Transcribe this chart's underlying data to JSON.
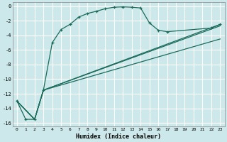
{
  "xlabel": "Humidex (Indice chaleur)",
  "bg_color": "#cce8ea",
  "grid_color": "#ffffff",
  "line_color": "#1a6b5a",
  "xlim": [
    -0.5,
    23.5
  ],
  "ylim": [
    -16.5,
    0.5
  ],
  "xtick_labels": [
    "0",
    "1",
    "2",
    "3",
    "4",
    "5",
    "6",
    "7",
    "8",
    "9",
    "10",
    "11",
    "12",
    "13",
    "14",
    "15",
    "16",
    "17",
    "18",
    "19",
    "20",
    "21",
    "22",
    "23"
  ],
  "xtick_vals": [
    0,
    1,
    2,
    3,
    4,
    5,
    6,
    7,
    8,
    9,
    10,
    11,
    12,
    13,
    14,
    15,
    16,
    17,
    18,
    19,
    20,
    21,
    22,
    23
  ],
  "ytick_vals": [
    0,
    -2,
    -4,
    -6,
    -8,
    -10,
    -12,
    -14,
    -16
  ],
  "curve_x": [
    0,
    1,
    2,
    3,
    4,
    5,
    6,
    7,
    8,
    9,
    10,
    11,
    12,
    13,
    14,
    15,
    16,
    17,
    22,
    23
  ],
  "curve_y": [
    -13,
    -15.5,
    -15.5,
    -11.5,
    -5.0,
    -3.2,
    -2.5,
    -1.5,
    -1.0,
    -0.7,
    -0.35,
    -0.15,
    -0.1,
    -0.15,
    -0.25,
    -2.3,
    -3.3,
    -3.5,
    -3.0,
    -2.5
  ],
  "line2_x": [
    0,
    2,
    3,
    23
  ],
  "line2_y": [
    -13,
    -15.5,
    -11.5,
    -2.5
  ],
  "line3_x": [
    0,
    2,
    3,
    23
  ],
  "line3_y": [
    -13,
    -15.5,
    -11.5,
    -2.7
  ],
  "line4_x": [
    0,
    2,
    3,
    23
  ],
  "line4_y": [
    -13,
    -15.5,
    -11.5,
    -4.5
  ]
}
